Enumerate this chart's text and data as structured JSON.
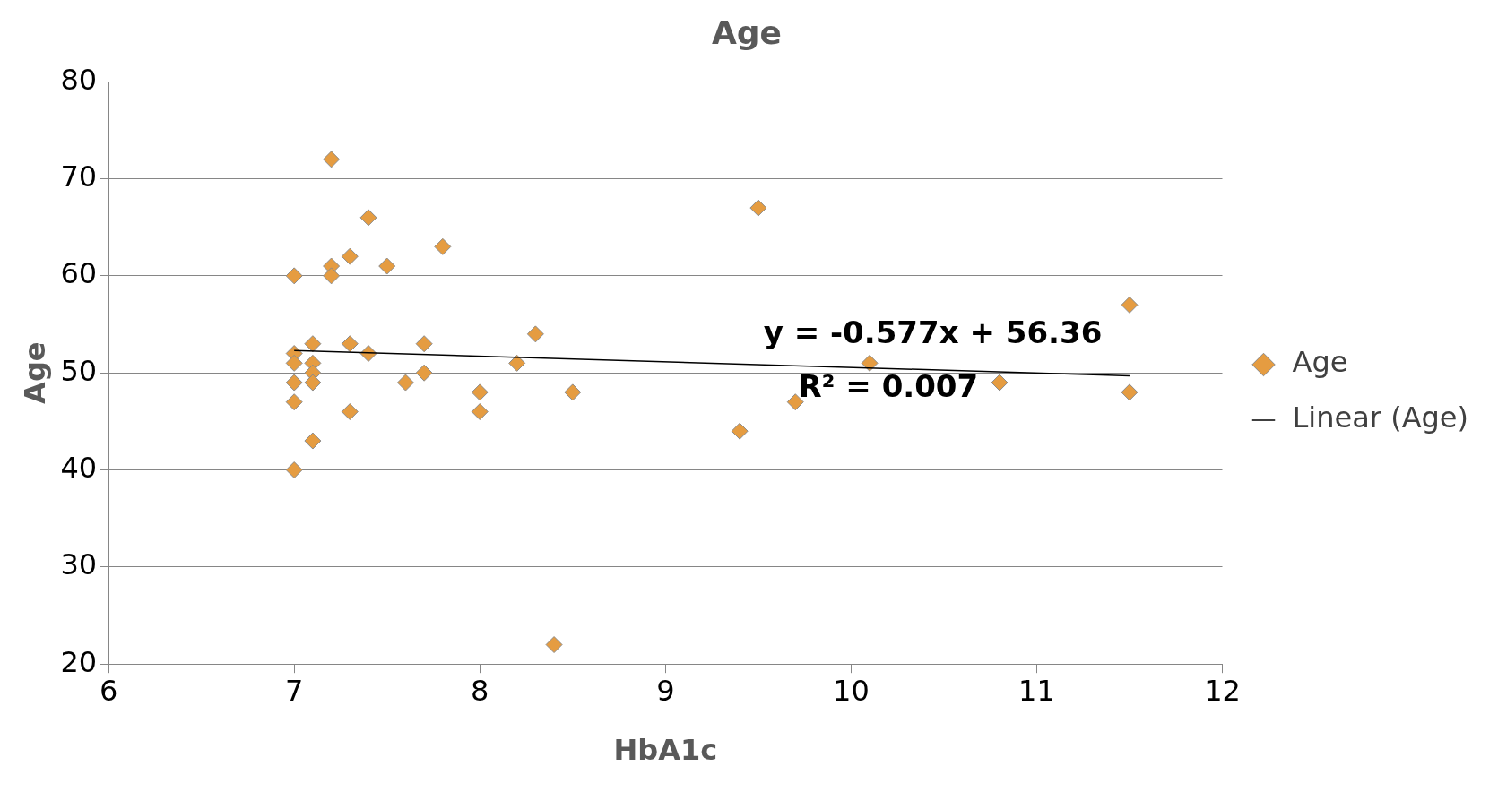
{
  "chart_data": {
    "type": "scatter",
    "title": "Age",
    "xlabel": "HbA1c",
    "ylabel": "Age",
    "xlim": [
      6,
      12
    ],
    "xticks": [
      6,
      7,
      8,
      9,
      10,
      11,
      12
    ],
    "ylim": [
      20,
      80
    ],
    "yticks": [
      20,
      30,
      40,
      50,
      60,
      70,
      80
    ],
    "grid": "y",
    "legend": "right",
    "series": [
      {
        "name": "Age",
        "color": "#e59c41",
        "marker": "diamond",
        "x": [
          7,
          7,
          7,
          7,
          7,
          7,
          7.1,
          7.1,
          7.1,
          7.1,
          7.1,
          7.2,
          7.2,
          7.2,
          7.3,
          7.3,
          7.3,
          7.4,
          7.4,
          7.5,
          7.6,
          7.7,
          7.7,
          7.8,
          8,
          8,
          8.2,
          8.3,
          8.4,
          8.5,
          9.4,
          9.5,
          9.7,
          10.1,
          10.8,
          11.5,
          11.5
        ],
        "values": [
          60,
          52,
          51,
          49,
          47,
          40,
          53,
          51,
          50,
          49,
          43,
          72,
          61,
          60,
          62,
          53,
          46,
          66,
          52,
          61,
          49,
          53,
          50,
          63,
          48,
          46,
          51,
          54,
          22,
          48,
          44,
          67,
          47,
          51,
          49,
          57,
          48
        ]
      },
      {
        "name": "Linear (Age)",
        "type": "line",
        "color": "#000000",
        "x": [
          7,
          11.5
        ],
        "values": [
          52.3,
          49.7
        ],
        "marker": "none"
      }
    ],
    "annotations": [
      "y = -0.577x + 56.36",
      "R² = 0.007"
    ]
  }
}
